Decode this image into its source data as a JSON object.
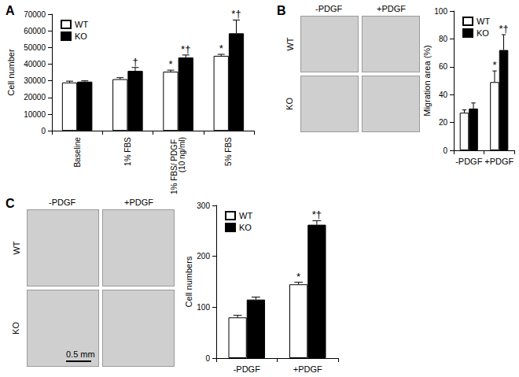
{
  "chart_data": [
    {
      "panel": "A",
      "type": "bar",
      "categories": [
        "Baseline",
        "1% FBS",
        "1% FBS/ PDGF (10 ng/ml)",
        "5% FBS"
      ],
      "series": [
        {
          "name": "WT",
          "color": "#ffffff",
          "values": [
            29000,
            31000,
            35500,
            45000
          ],
          "errors": [
            800,
            900,
            900,
            900
          ],
          "annotations": [
            null,
            null,
            "*",
            "*"
          ]
        },
        {
          "name": "KO",
          "color": "#000000",
          "values": [
            29500,
            36000,
            44000,
            58500
          ],
          "errors": [
            500,
            2000,
            1500,
            8000
          ],
          "annotations": [
            null,
            "†",
            "*†",
            "*†"
          ]
        }
      ],
      "y_label": "Cell number",
      "ylim": [
        0,
        70000
      ],
      "yticks": [
        0,
        10000,
        20000,
        30000,
        40000,
        50000,
        60000,
        70000
      ],
      "legend": "upper left"
    },
    {
      "panel": "B",
      "type": "bar",
      "micrographs": {
        "columns": [
          "-PDGF",
          "+PDGF"
        ],
        "rows": [
          "WT",
          "KO"
        ]
      },
      "categories": [
        "-PDGF",
        "+PDGF"
      ],
      "series": [
        {
          "name": "WT",
          "color": "#ffffff",
          "values": [
            27,
            49
          ],
          "errors": [
            2,
            8
          ],
          "annotations": [
            null,
            "*"
          ]
        },
        {
          "name": "KO",
          "color": "#000000",
          "values": [
            30,
            72
          ],
          "errors": [
            4,
            11
          ],
          "annotations": [
            null,
            "*†"
          ]
        }
      ],
      "y_label": "Migration area (%)",
      "ylim": [
        0,
        100
      ],
      "yticks": [
        0,
        20,
        40,
        60,
        80,
        100
      ],
      "legend": "upper left"
    },
    {
      "panel": "C",
      "type": "bar",
      "micrographs": {
        "columns": [
          "-PDGF",
          "+PDGF"
        ],
        "rows": [
          "WT",
          "KO"
        ],
        "scale_bar": "0.5 mm"
      },
      "categories": [
        "-PDGF",
        "+PDGF"
      ],
      "series": [
        {
          "name": "WT",
          "color": "#ffffff",
          "values": [
            80,
            145
          ],
          "errors": [
            4,
            4
          ],
          "annotations": [
            null,
            "*"
          ]
        },
        {
          "name": "KO",
          "color": "#000000",
          "values": [
            115,
            262
          ],
          "errors": [
            5,
            8
          ],
          "annotations": [
            null,
            "*†"
          ]
        }
      ],
      "y_label": "Cell numbers",
      "ylim": [
        0,
        300
      ],
      "yticks": [
        0,
        100,
        200,
        300
      ],
      "legend": "upper left"
    }
  ]
}
